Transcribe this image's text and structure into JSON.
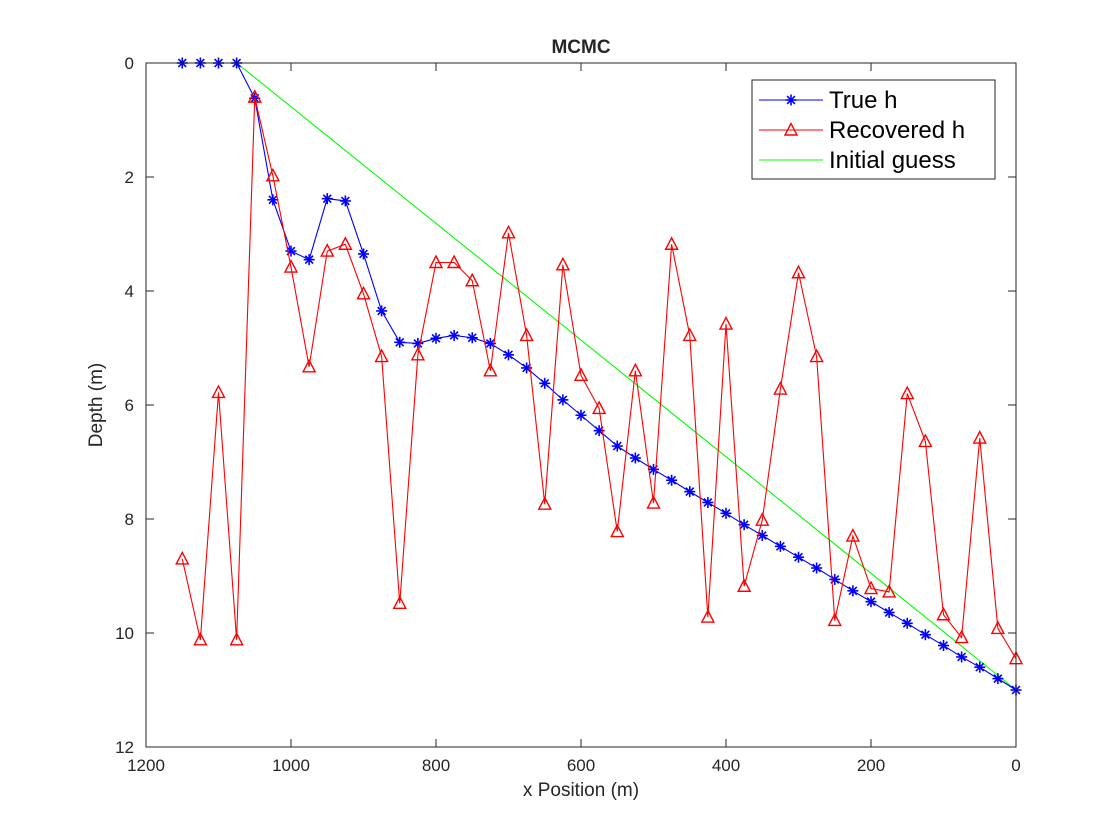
{
  "chart_data": {
    "type": "line",
    "title": "MCMC",
    "xlabel": "x Position (m)",
    "ylabel": "Depth (m)",
    "xlim": [
      1200,
      0
    ],
    "ylim": [
      12,
      0
    ],
    "x_direction": "reversed",
    "y_direction": "reversed",
    "xticks": [
      1200,
      1000,
      800,
      600,
      400,
      200,
      0
    ],
    "yticks": [
      0,
      2,
      4,
      6,
      8,
      10,
      12
    ],
    "grid": false,
    "legend_position": "top-right",
    "series": [
      {
        "name": "True h",
        "color": "#0000ff",
        "marker": "asterisk",
        "x": [
          1150,
          1125,
          1100,
          1075,
          1050,
          1025,
          1000,
          975,
          950,
          925,
          900,
          875,
          850,
          825,
          800,
          775,
          750,
          725,
          700,
          675,
          650,
          625,
          600,
          575,
          550,
          525,
          500,
          475,
          450,
          425,
          400,
          375,
          350,
          325,
          300,
          275,
          250,
          225,
          200,
          175,
          150,
          125,
          100,
          75,
          50,
          25,
          0
        ],
        "y": [
          0,
          0,
          0,
          0,
          0.62,
          2.4,
          3.3,
          3.45,
          2.38,
          2.42,
          3.35,
          4.35,
          4.9,
          4.92,
          4.83,
          4.78,
          4.82,
          4.92,
          5.12,
          5.35,
          5.62,
          5.91,
          6.18,
          6.45,
          6.72,
          6.93,
          7.13,
          7.32,
          7.52,
          7.71,
          7.9,
          8.1,
          8.29,
          8.48,
          8.67,
          8.86,
          9.06,
          9.26,
          9.45,
          9.64,
          9.83,
          10.03,
          10.22,
          10.42,
          10.6,
          10.8,
          11.0
        ]
      },
      {
        "name": "Recovered h",
        "color": "#ff0000",
        "marker": "triangle",
        "x": [
          1150,
          1125,
          1100,
          1075,
          1050,
          1025,
          1000,
          975,
          950,
          925,
          900,
          875,
          850,
          825,
          800,
          775,
          750,
          725,
          700,
          675,
          650,
          625,
          600,
          575,
          550,
          525,
          500,
          475,
          450,
          425,
          400,
          375,
          350,
          325,
          300,
          275,
          250,
          225,
          200,
          175,
          150,
          125,
          100,
          75,
          50,
          25,
          0
        ],
        "y": [
          8.7,
          10.12,
          5.78,
          10.12,
          0.6,
          1.98,
          3.58,
          5.33,
          3.3,
          3.18,
          4.05,
          5.15,
          9.48,
          5.12,
          3.5,
          3.5,
          3.82,
          5.4,
          2.98,
          4.78,
          7.74,
          3.54,
          5.48,
          6.06,
          8.22,
          5.4,
          7.72,
          3.18,
          4.78,
          9.72,
          4.58,
          9.18,
          8.02,
          5.72,
          3.68,
          5.15,
          9.78,
          8.3,
          9.22,
          9.28,
          5.8,
          6.64,
          9.68,
          10.08,
          6.58,
          9.92,
          10.45
        ]
      },
      {
        "name": "Initial guess",
        "color": "#00ff00",
        "marker": "none",
        "x": [
          1075,
          0
        ],
        "y": [
          0,
          11.0
        ]
      }
    ]
  }
}
